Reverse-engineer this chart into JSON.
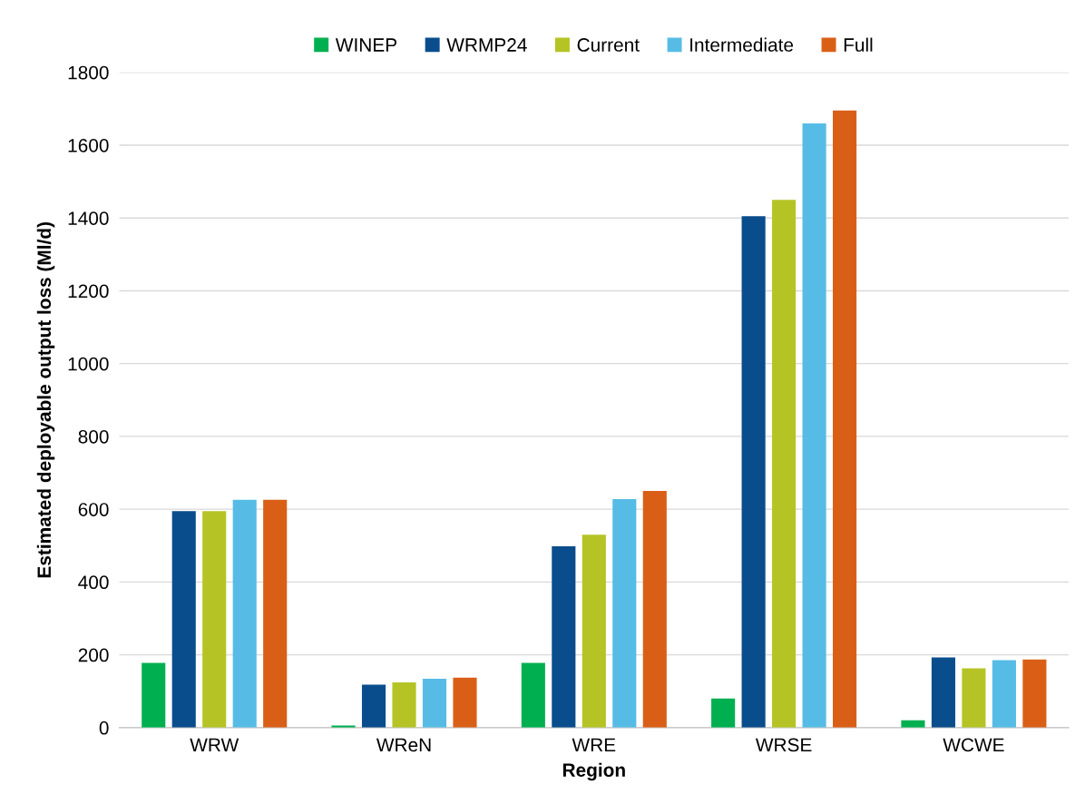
{
  "chart_data": {
    "type": "bar",
    "xlabel": "Region",
    "ylabel": "Estimated deployable output loss (Ml/d)",
    "categories": [
      "WRW",
      "WReN",
      "WRE",
      "WRSE",
      "WCWE"
    ],
    "series": [
      {
        "name": "WINEP",
        "color": "#00b050",
        "values": [
          178,
          6,
          178,
          80,
          20
        ]
      },
      {
        "name": "WRMP24",
        "color": "#0a4d8c",
        "values": [
          595,
          118,
          498,
          1405,
          193
        ]
      },
      {
        "name": "Current",
        "color": "#b5c424",
        "values": [
          595,
          124,
          530,
          1450,
          163
        ]
      },
      {
        "name": "Intermediate",
        "color": "#56bce6",
        "values": [
          626,
          134,
          628,
          1660,
          185
        ]
      },
      {
        "name": "Full",
        "color": "#d95f17",
        "values": [
          626,
          137,
          650,
          1695,
          187
        ]
      }
    ],
    "ylim": [
      0,
      1800
    ],
    "yticks": [
      0,
      200,
      400,
      600,
      800,
      1000,
      1200,
      1400,
      1600,
      1800
    ],
    "grid": "y",
    "legend": "top"
  }
}
